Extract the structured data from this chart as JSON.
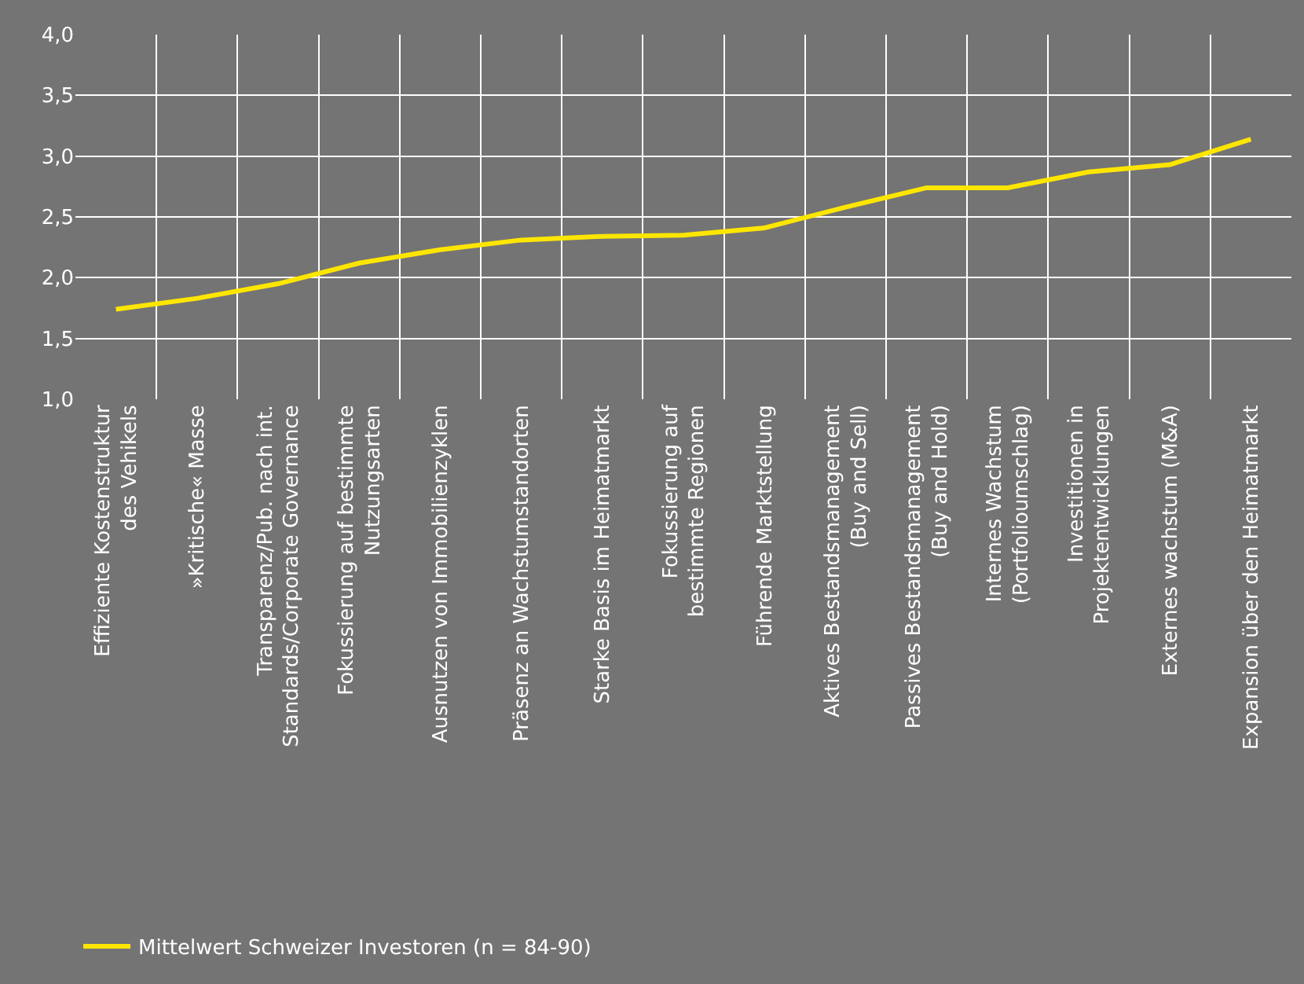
{
  "chart_data": {
    "type": "line",
    "categories": [
      "Effiziente Kostenstruktur\ndes Vehikels",
      "»Kritische« Masse",
      "Transparenz/Pub. nach int.\nStandards/Corporate Governance",
      "Fokussierung auf bestimmte\nNutzungsarten",
      "Ausnutzen von Immobilienzyklen",
      "Präsenz an Wachstumstandorten",
      "Starke Basis im Heimatmarkt",
      "Fokussierung auf\nbestimmte Regionen",
      "Führende Marktstellung",
      "Aktives Bestandsmanagement\n(Buy and Sell)",
      "Passives Bestandsmanagement\n(Buy and Hold)",
      "Internes Wachstum\n(Portfolioumschlag)",
      "Investitionen in\nProjektentwicklungen",
      "Externes wachstum (M&A)",
      "Expansion über den Heimatmarkt"
    ],
    "series": [
      {
        "name": "Mittelwert Schweizer Investoren (n = 84-90)",
        "color": "#ffe600",
        "values": [
          1.74,
          1.83,
          1.95,
          2.12,
          2.23,
          2.31,
          2.34,
          2.35,
          2.41,
          2.58,
          2.74,
          2.74,
          2.87,
          2.93,
          3.14
        ]
      }
    ],
    "ylim": [
      1,
      4
    ],
    "yticks": [
      {
        "value": 1,
        "label": "1,0"
      },
      {
        "value": 1.5,
        "label": "1,5"
      },
      {
        "value": 2,
        "label": "2,0"
      },
      {
        "value": 2.5,
        "label": "2,5"
      },
      {
        "value": 3,
        "label": "3,0"
      },
      {
        "value": 3.5,
        "label": "3,5"
      },
      {
        "value": 4,
        "label": "4,0"
      }
    ],
    "grid": true,
    "legend": "bottom left",
    "marker": "none",
    "line_style": "solid"
  }
}
